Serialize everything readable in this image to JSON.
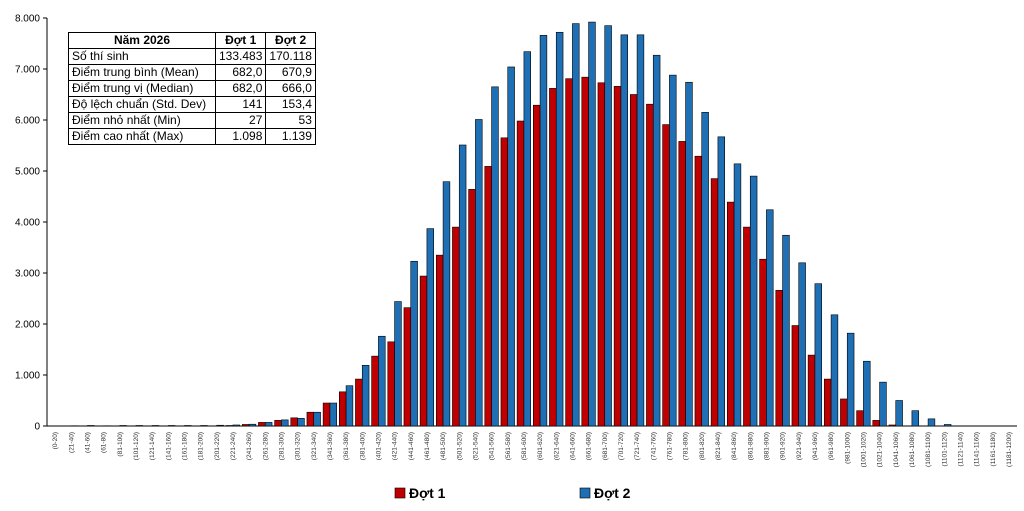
{
  "stats_table": {
    "headers": [
      "Năm 2026",
      "Đợt 1",
      "Đợt 2"
    ],
    "rows": [
      [
        "Số thí sinh",
        "133.483",
        "170.118"
      ],
      [
        "Điểm trung bình (Mean)",
        "682,0",
        "670,9"
      ],
      [
        "Điểm trung vị (Median)",
        "682,0",
        "666,0"
      ],
      [
        "Độ lệch chuẩn (Std. Dev)",
        "141",
        "153,4"
      ],
      [
        "Điểm nhỏ nhất (Min)",
        "27",
        "53"
      ],
      [
        "Điểm cao nhất (Max)",
        "1.098",
        "1.139"
      ]
    ]
  },
  "chart_data": {
    "type": "bar",
    "title": "",
    "xlabel": "",
    "ylabel": "",
    "ylim": [
      0,
      8000
    ],
    "yticks": [
      0,
      1000,
      2000,
      3000,
      4000,
      5000,
      6000,
      7000,
      8000
    ],
    "ytick_labels": [
      "0",
      "1.000",
      "2.000",
      "3.000",
      "4.000",
      "5.000",
      "6.000",
      "7.000",
      "8.000"
    ],
    "grid": false,
    "legend_position": "bottom",
    "categories": [
      "(0-20)",
      "(21-40)",
      "(41-60)",
      "(61-80)",
      "(81-100)",
      "(101-120)",
      "(121-140)",
      "(141-160)",
      "(161-180)",
      "(181-200)",
      "(201-220)",
      "(221-240)",
      "(241-260)",
      "(261-280)",
      "(281-300)",
      "(301-320)",
      "(321-340)",
      "(341-360)",
      "(361-380)",
      "(381-400)",
      "(401-420)",
      "(421-440)",
      "(441-460)",
      "(461-480)",
      "(481-500)",
      "(501-520)",
      "(521-540)",
      "(541-560)",
      "(561-580)",
      "(581-600)",
      "(601-620)",
      "(621-640)",
      "(641-660)",
      "(661-680)",
      "(681-700)",
      "(701-720)",
      "(721-740)",
      "(741-760)",
      "(761-780)",
      "(781-800)",
      "(801-820)",
      "(821-840)",
      "(841-860)",
      "(861-880)",
      "(881-900)",
      "(901-920)",
      "(921-940)",
      "(941-960)",
      "(961-980)",
      "(981-1000)",
      "(1001-1020)",
      "(1021-1040)",
      "(1041-1060)",
      "(1061-1080)",
      "(1081-1100)",
      "(1101-1120)",
      "(1121-1140)",
      "(1141-1160)",
      "(1161-1180)",
      "(1181-1200)"
    ],
    "series": [
      {
        "name": "Đợt 1",
        "color": "#c00000",
        "values": [
          0,
          0,
          0,
          0,
          0,
          0,
          0,
          0,
          0,
          0,
          3,
          10,
          30,
          70,
          110,
          160,
          270,
          450,
          670,
          920,
          1370,
          1650,
          2320,
          2940,
          3350,
          3900,
          4640,
          5090,
          5650,
          5980,
          6290,
          6620,
          6810,
          6840,
          6730,
          6660,
          6500,
          6310,
          5910,
          5580,
          5290,
          4850,
          4390,
          3900,
          3270,
          2660,
          1970,
          1390,
          920,
          530,
          300,
          110,
          20,
          0,
          0,
          0,
          0,
          0,
          0,
          0
        ]
      },
      {
        "name": "Đợt 2",
        "color": "#1f6fb5",
        "values": [
          0,
          5,
          10,
          5,
          10,
          10,
          10,
          10,
          10,
          10,
          15,
          20,
          35,
          70,
          120,
          150,
          270,
          450,
          790,
          1190,
          1760,
          2440,
          3230,
          3870,
          4790,
          5510,
          6010,
          6650,
          7040,
          7340,
          7660,
          7720,
          7890,
          7920,
          7850,
          7670,
          7670,
          7270,
          6880,
          6740,
          6150,
          5670,
          5140,
          4900,
          4240,
          3740,
          3200,
          2790,
          2180,
          1820,
          1270,
          860,
          500,
          300,
          140,
          30,
          0,
          0,
          0,
          0
        ]
      }
    ]
  }
}
